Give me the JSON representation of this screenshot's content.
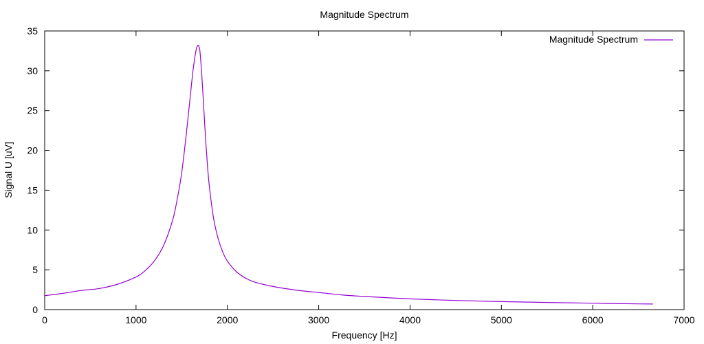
{
  "chart_data": {
    "type": "line",
    "title": "Magnitude Spectrum",
    "xlabel": "Frequency [Hz]",
    "ylabel": "Signal U [uV]",
    "xlim": [
      0,
      7000
    ],
    "ylim": [
      0,
      35
    ],
    "xticks": [
      0,
      1000,
      2000,
      3000,
      4000,
      5000,
      6000,
      7000
    ],
    "yticks": [
      0,
      5,
      10,
      15,
      20,
      25,
      30,
      35
    ],
    "grid": false,
    "legend_position": "top-right",
    "series": [
      {
        "name": "Magnitude Spectrum",
        "color": "#9400d3",
        "x": [
          0,
          200,
          400,
          600,
          800,
          1000,
          1100,
          1200,
          1300,
          1400,
          1450,
          1500,
          1550,
          1600,
          1630,
          1660,
          1680,
          1690,
          1700,
          1720,
          1740,
          1770,
          1800,
          1850,
          1900,
          1950,
          2000,
          2100,
          2200,
          2300,
          2500,
          2750,
          3000,
          3250,
          3500,
          4000,
          4500,
          5000,
          5500,
          6000,
          6500,
          6660
        ],
        "y": [
          1.75,
          2.05,
          2.4,
          2.65,
          3.2,
          4.1,
          4.9,
          6.1,
          8.0,
          11.2,
          13.8,
          17.2,
          22.0,
          27.5,
          30.6,
          32.7,
          33.2,
          33.0,
          32.4,
          29.5,
          25.6,
          20.0,
          15.8,
          11.4,
          8.9,
          7.2,
          6.1,
          4.75,
          3.95,
          3.45,
          2.9,
          2.45,
          2.15,
          1.85,
          1.65,
          1.35,
          1.15,
          1.0,
          0.9,
          0.8,
          0.72,
          0.7
        ]
      }
    ]
  }
}
